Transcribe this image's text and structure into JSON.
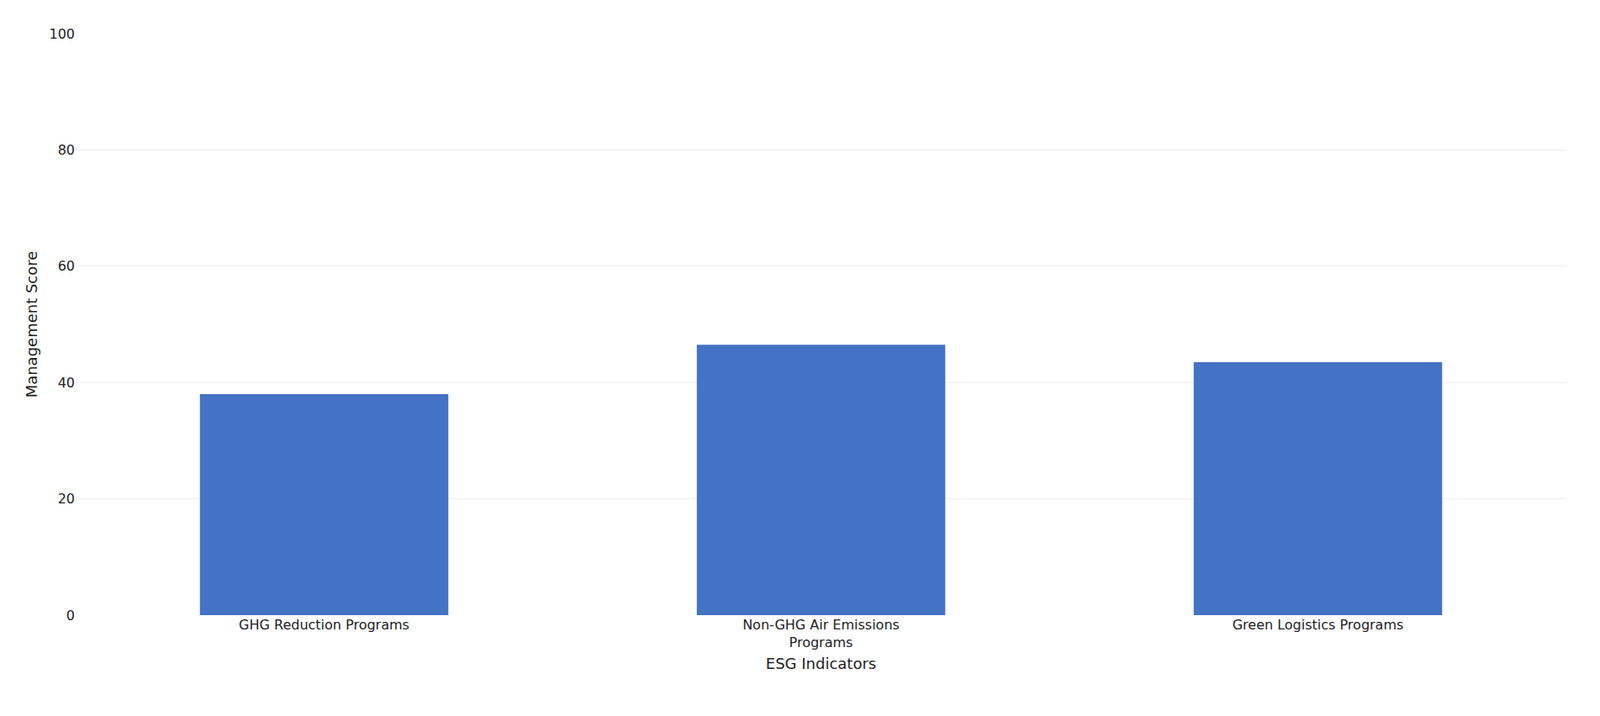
{
  "chart_data": {
    "type": "bar",
    "categories": [
      "GHG Reduction Programs",
      "Non-GHG Air Emissions\nPrograms",
      "Green Logistics Programs"
    ],
    "values": [
      38.0,
      46.5,
      43.5
    ],
    "color": "#4472C4",
    "xlabel": "ESG Indicators",
    "ylabel": "Management Score",
    "ylim": [
      0,
      100
    ],
    "yticks": [
      0,
      20,
      40,
      60,
      80,
      100
    ],
    "grid": true
  }
}
